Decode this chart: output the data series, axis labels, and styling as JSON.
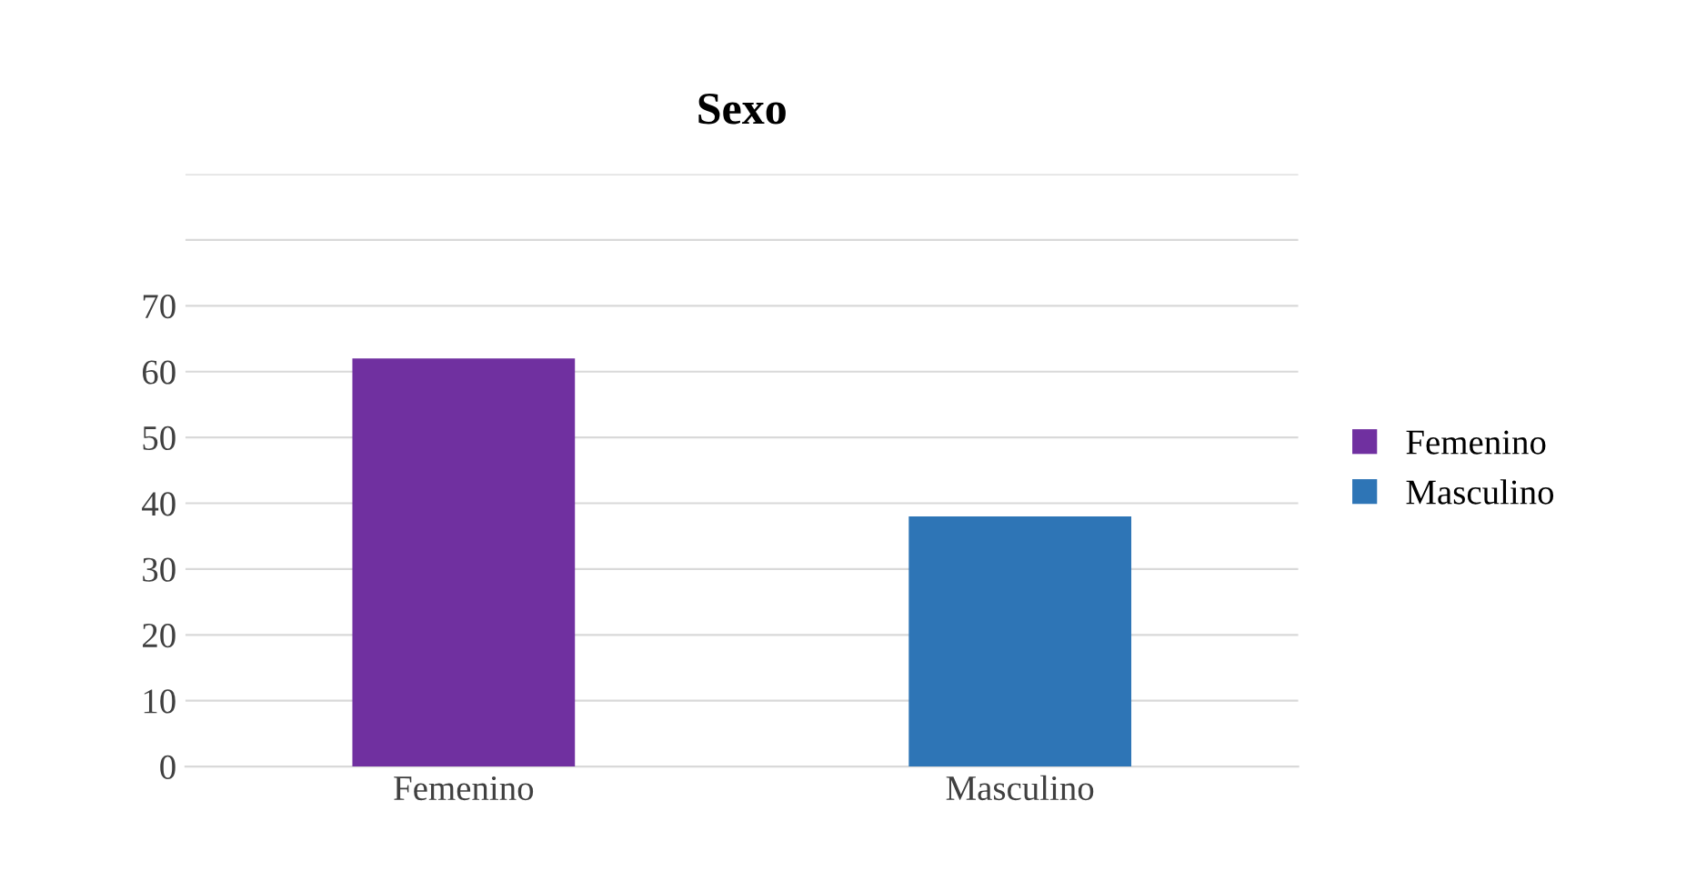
{
  "chart_data": {
    "type": "bar",
    "title": "Sexo",
    "categories": [
      "Femenino",
      "Masculino"
    ],
    "series": [
      {
        "name": "Femenino",
        "color": "#7030a0",
        "values": [
          62,
          null
        ]
      },
      {
        "name": "Masculino",
        "color": "#2e75b6",
        "values": [
          null,
          38
        ]
      }
    ],
    "ylim": [
      0,
      90
    ],
    "yticks": [
      0,
      10,
      20,
      30,
      40,
      50,
      60,
      70,
      {
        "value": 80,
        "label": null
      },
      {
        "value": 90,
        "label": null
      }
    ],
    "grid": "y",
    "legend": "right"
  }
}
